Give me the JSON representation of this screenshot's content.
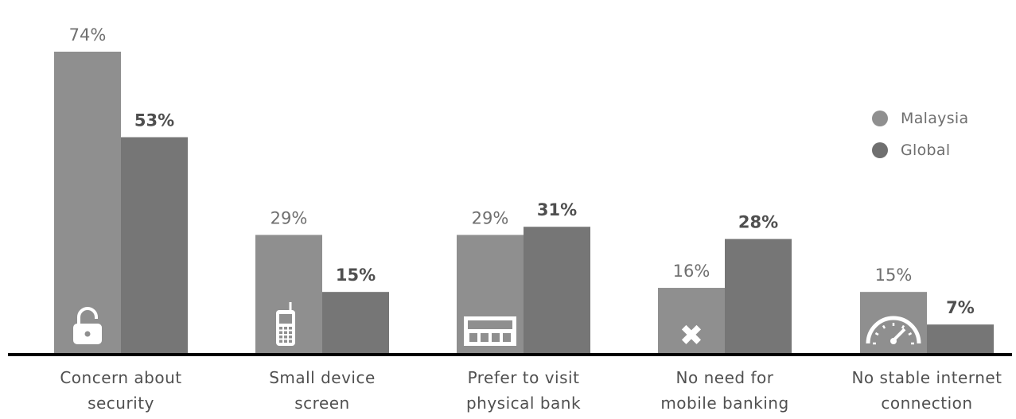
{
  "chart_data": {
    "type": "bar",
    "categories": [
      [
        "Concern about",
        "security"
      ],
      [
        "Small device",
        "screen"
      ],
      [
        "Prefer to visit",
        "physical bank"
      ],
      [
        "No need for",
        "mobile banking"
      ],
      [
        "No stable internet",
        "connection"
      ]
    ],
    "category_icons": [
      "padlock-icon",
      "mobile-phone-icon",
      "bank-counter-icon",
      "x-mark-icon",
      "speedometer-icon"
    ],
    "series": [
      {
        "name": "Malaysia",
        "values": [
          74,
          29,
          29,
          16,
          15
        ],
        "labels": [
          "74%",
          "29%",
          "29%",
          "16%",
          "15%"
        ],
        "color": "#8f8f8f"
      },
      {
        "name": "Global",
        "values": [
          53,
          15,
          31,
          28,
          7
        ],
        "labels": [
          "53%",
          "15%",
          "31%",
          "28%",
          "7%"
        ],
        "color": "#767676"
      }
    ],
    "ylim": [
      0,
      80
    ],
    "grid": false,
    "legend_position": "right",
    "axis_color": "#000000",
    "value_label_colors": {
      "Malaysia": "#6f6f6f",
      "Global": "#4f4f4f"
    }
  },
  "legend": {
    "items": [
      {
        "label": "Malaysia",
        "color": "#8f8f8f"
      },
      {
        "label": "Global",
        "color": "#6f6f6f"
      }
    ]
  }
}
